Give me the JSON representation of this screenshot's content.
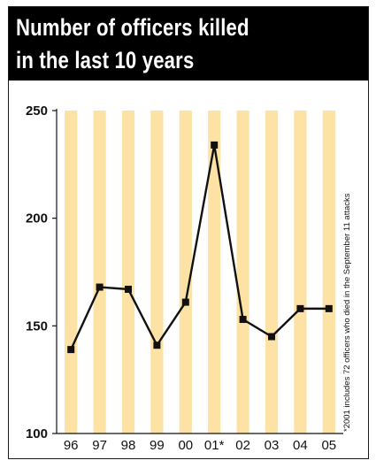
{
  "title": {
    "line1": "Number of officers killed",
    "line2": "in the last 10 years"
  },
  "footnote": "*2001 includes 72 officers who died in the September 11 attacks",
  "colors": {
    "bar": "#fde2a6",
    "line": "#111111",
    "title_bg": "#000000",
    "title_text": "#ffffff"
  },
  "chart_data": {
    "type": "line",
    "categories": [
      "96",
      "97",
      "98",
      "99",
      "00",
      "01*",
      "02",
      "03",
      "04",
      "05"
    ],
    "values": [
      139,
      168,
      167,
      141,
      161,
      234,
      153,
      145,
      158,
      158
    ],
    "ylim": [
      100,
      250
    ],
    "yticks": [
      "100",
      "150",
      "200",
      "250"
    ],
    "grid": false,
    "background_columns": true
  }
}
